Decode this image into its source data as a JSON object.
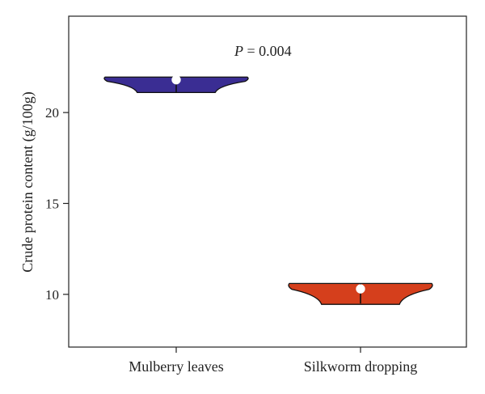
{
  "chart_data": {
    "type": "violin",
    "categories": [
      "Mulberry leaves",
      "Silkworm dropping"
    ],
    "ylabel": "Crude protein content (g/100g)",
    "xlabel": "",
    "ylim": [
      7.1,
      25.3
    ],
    "yticks": [
      10,
      15,
      20
    ],
    "annotation": {
      "prefix": "P",
      "text": " = 0.004"
    },
    "series": [
      {
        "category": "Mulberry leaves",
        "color": "#3a2d93",
        "min": 21.1,
        "max": 21.95,
        "median": 21.8,
        "whisker": [
          21.1,
          21.9
        ]
      },
      {
        "category": "Silkworm dropping",
        "color": "#d53f1c",
        "min": 9.45,
        "max": 10.6,
        "median": 10.3,
        "whisker": [
          9.5,
          10.6
        ]
      }
    ]
  }
}
